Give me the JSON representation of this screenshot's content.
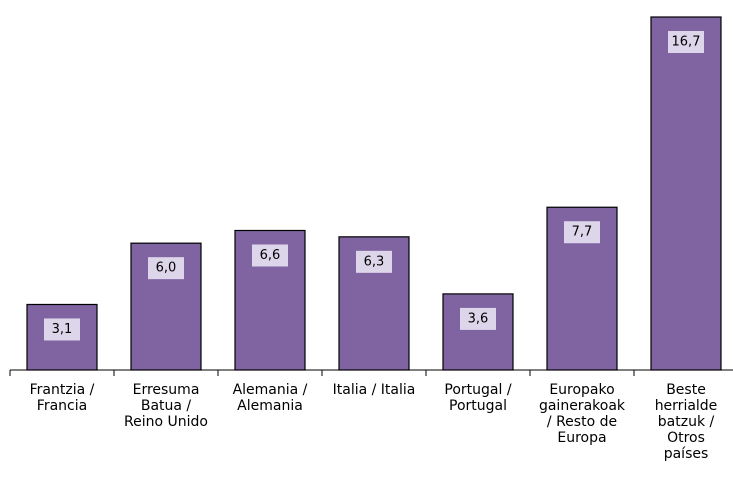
{
  "chart_data": {
    "type": "bar",
    "categories": [
      "Frantzia /\nFrancia",
      "Erresuma\nBatua /\nReino Unido",
      "Alemania /\nAlemania",
      "Italia / Italia",
      "Portugal /\nPortugal",
      "Europako\ngainerakoak\n/ Resto de\nEuropa",
      "Beste\nherrialde\nbatzuk /\nOtros\npaíses"
    ],
    "values": [
      3.1,
      6.0,
      6.6,
      6.3,
      3.6,
      7.7,
      16.7
    ],
    "value_labels": [
      "3,1",
      "6,0",
      "6,6",
      "6,3",
      "3,6",
      "7,7",
      "16,7"
    ],
    "color": "#8064a2"
  }
}
